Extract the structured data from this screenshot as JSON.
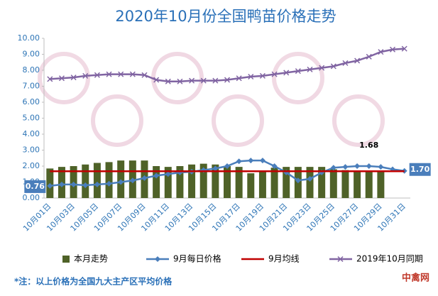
{
  "chart_data": {
    "type": "combo",
    "title": "2020年10月份全国鸭苗价格走势",
    "categories": [
      "10月01日",
      null,
      "10月03日",
      null,
      "10月05日",
      null,
      "10月07日",
      null,
      "10月09日",
      null,
      "10月11日",
      null,
      "10月13日",
      null,
      "10月15日",
      null,
      "10月17日",
      null,
      "10月19日",
      null,
      "10月21日",
      null,
      "10月23日",
      null,
      "10月25日",
      null,
      "10月27日",
      null,
      "10月29日",
      null,
      "10月31日"
    ],
    "ylim": [
      0,
      10
    ],
    "yticks": [
      {
        "value": 0,
        "label": "0.00"
      },
      {
        "value": 1,
        "label": "1.00"
      },
      {
        "value": 2,
        "label": "2.00"
      },
      {
        "value": 3,
        "label": "3.00"
      },
      {
        "value": 4,
        "label": "4.00"
      },
      {
        "value": 5,
        "label": "5.00"
      },
      {
        "value": 6,
        "label": "6.00"
      },
      {
        "value": 7,
        "label": "7.00"
      },
      {
        "value": 8,
        "label": "8.00"
      },
      {
        "value": 9,
        "label": "9.00"
      },
      {
        "value": 10,
        "label": "10.00"
      }
    ],
    "grid": false,
    "series": [
      {
        "name": "本月走势",
        "type": "bar",
        "color": "#4f6228",
        "values": [
          1.85,
          1.95,
          2.0,
          2.1,
          2.2,
          2.25,
          2.35,
          2.35,
          2.35,
          2.0,
          1.95,
          2.0,
          2.1,
          2.15,
          2.1,
          2.0,
          1.95,
          1.55,
          1.7,
          1.9,
          1.95,
          1.95,
          1.95,
          1.95,
          1.8,
          1.75,
          1.7,
          1.7,
          1.7,
          null,
          null
        ]
      },
      {
        "name": "9月每日价格",
        "type": "line",
        "marker": "diamond",
        "color": "#4a7ebb",
        "values": [
          0.76,
          0.85,
          0.85,
          0.8,
          0.85,
          0.9,
          1.0,
          1.1,
          1.25,
          1.4,
          1.5,
          1.6,
          1.65,
          1.75,
          1.85,
          2.0,
          2.3,
          2.35,
          2.35,
          2.0,
          1.6,
          1.1,
          1.2,
          1.6,
          1.9,
          1.95,
          2.0,
          2.0,
          1.95,
          1.8,
          1.7
        ],
        "value_labels": [
          "0.76",
          null,
          null,
          null,
          null,
          null,
          null,
          null,
          null,
          null,
          null,
          null,
          null,
          null,
          null,
          null,
          null,
          null,
          null,
          null,
          null,
          null,
          null,
          null,
          null,
          null,
          null,
          null,
          null,
          null,
          "1.70"
        ]
      },
      {
        "name": "9月均线",
        "type": "line",
        "color": "#c00000",
        "values": [
          1.68,
          1.68,
          1.68,
          1.68,
          1.68,
          1.68,
          1.68,
          1.68,
          1.68,
          1.68,
          1.68,
          1.68,
          1.68,
          1.68,
          1.68,
          1.68,
          1.68,
          1.68,
          1.68,
          1.68,
          1.68,
          1.68,
          1.68,
          1.68,
          1.68,
          1.68,
          1.68,
          1.68,
          1.68,
          1.68,
          1.68
        ],
        "value_labels": [
          null,
          null,
          null,
          null,
          null,
          null,
          null,
          null,
          null,
          null,
          null,
          null,
          null,
          null,
          null,
          null,
          null,
          null,
          null,
          null,
          null,
          null,
          null,
          null,
          null,
          null,
          null,
          "1.68",
          null,
          null,
          null
        ]
      },
      {
        "name": "2019年10月同期",
        "type": "line",
        "marker": "x",
        "color": "#8064a2",
        "values": [
          7.45,
          7.5,
          7.55,
          7.65,
          7.7,
          7.75,
          7.75,
          7.75,
          7.7,
          7.4,
          7.3,
          7.3,
          7.35,
          7.35,
          7.35,
          7.4,
          7.5,
          7.6,
          7.65,
          7.75,
          7.85,
          7.95,
          8.05,
          8.15,
          8.25,
          8.45,
          8.6,
          8.85,
          9.15,
          9.3,
          9.35
        ]
      }
    ],
    "footnote": "*注：以上价格为全国九大主产区平均价格",
    "watermark": "中禽网"
  }
}
